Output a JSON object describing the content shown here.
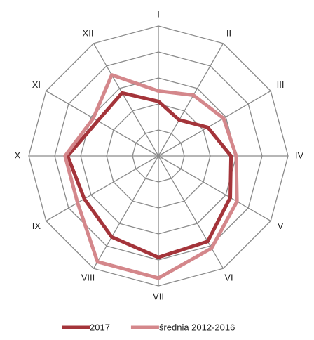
{
  "chart_data": {
    "type": "radar",
    "categories": [
      "I",
      "II",
      "III",
      "IV",
      "V",
      "VI",
      "VII",
      "VIII",
      "IX",
      "X",
      "XI",
      "XII"
    ],
    "series": [
      {
        "name": "2017",
        "color": "#a4343a",
        "values": [
          2.1,
          1.6,
          2.2,
          2.8,
          3.2,
          3.8,
          3.9,
          3.6,
          3.3,
          3.5,
          2.7,
          2.8
        ]
      },
      {
        "name": "średnia 2012-2016",
        "color": "#d4878b",
        "values": [
          2.5,
          2.7,
          2.9,
          3.0,
          3.5,
          4.1,
          4.7,
          4.7,
          3.6,
          3.6,
          2.9,
          3.6
        ]
      }
    ],
    "rlim": [
      0,
      5
    ],
    "rticks": [
      1,
      2,
      3,
      4,
      5
    ],
    "grid": true,
    "legend": "bottom"
  }
}
